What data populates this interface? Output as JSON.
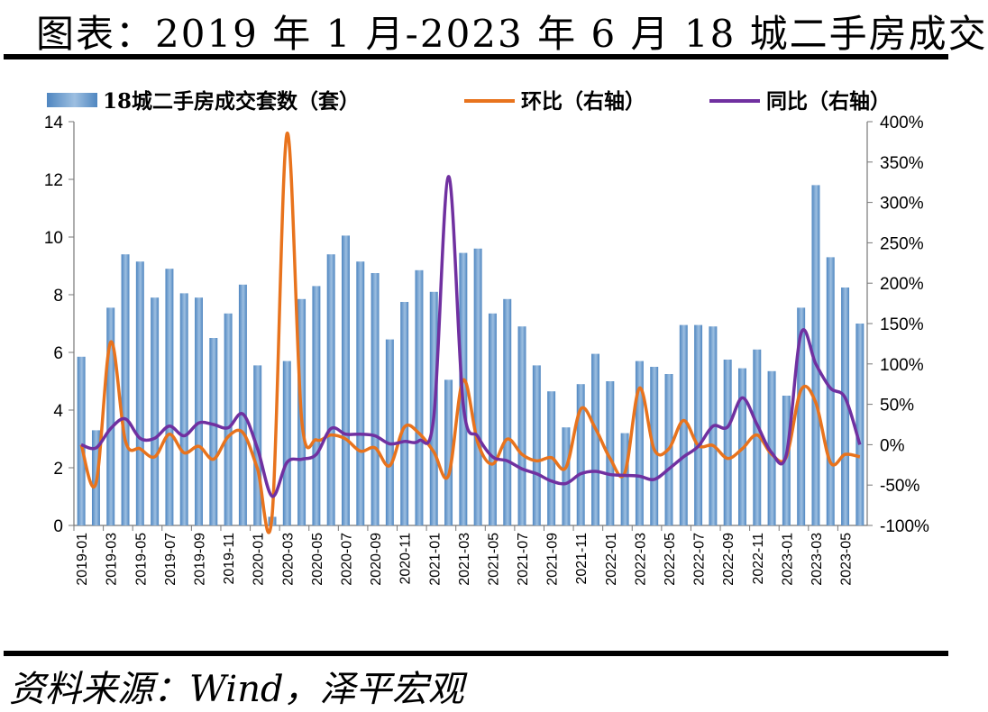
{
  "title": "图表：2019 年 1 月-2023 年 6 月 18 城二手房成交",
  "source": "资料来源：Wind，泽平宏观",
  "colors": {
    "bar": "#4f86c0",
    "bar_light": "#9dbfe1",
    "mom": "#e8731d",
    "yoy": "#7030a0"
  },
  "chart_data": {
    "type": "bar",
    "title": "",
    "xlabel": "",
    "ylabel": "",
    "ylim": [
      0,
      14
    ],
    "y2lim": [
      -1.0,
      4.0
    ],
    "y_ticks": [
      "0",
      "2",
      "4",
      "6",
      "8",
      "10",
      "12",
      "14"
    ],
    "y2_ticks": [
      "-100%",
      "-50%",
      "0%",
      "50%",
      "100%",
      "150%",
      "200%",
      "250%",
      "300%",
      "350%",
      "400%"
    ],
    "grid": false,
    "legend_position": "top",
    "x_tick_labels": [
      "2019-01",
      "2019-03",
      "2019-05",
      "2019-07",
      "2019-09",
      "2019-11",
      "2020-01",
      "2020-03",
      "2020-05",
      "2020-07",
      "2020-09",
      "2020-11",
      "2021-01",
      "2021-03",
      "2021-05",
      "2021-07",
      "2021-09",
      "2021-11",
      "2022-01",
      "2022-03",
      "2022-05",
      "2022-07",
      "2022-09",
      "2022-11",
      "2023-01",
      "2023-03",
      "2023-05"
    ],
    "categories": [
      "2019-01",
      "2019-02",
      "2019-03",
      "2019-04",
      "2019-05",
      "2019-06",
      "2019-07",
      "2019-08",
      "2019-09",
      "2019-10",
      "2019-11",
      "2019-12",
      "2020-01",
      "2020-02",
      "2020-03",
      "2020-04",
      "2020-05",
      "2020-06",
      "2020-07",
      "2020-08",
      "2020-09",
      "2020-10",
      "2020-11",
      "2020-12",
      "2021-01",
      "2021-02",
      "2021-03",
      "2021-04",
      "2021-05",
      "2021-06",
      "2021-07",
      "2021-08",
      "2021-09",
      "2021-10",
      "2021-11",
      "2021-12",
      "2022-01",
      "2022-02",
      "2022-03",
      "2022-04",
      "2022-05",
      "2022-06",
      "2022-07",
      "2022-08",
      "2022-09",
      "2022-10",
      "2022-11",
      "2022-12",
      "2023-01",
      "2023-02",
      "2023-03",
      "2023-04",
      "2023-05",
      "2023-06"
    ],
    "series": [
      {
        "name": "18城二手房成交套数（套）",
        "type": "bar",
        "axis": "left",
        "values": [
          5.85,
          3.3,
          7.55,
          9.4,
          9.15,
          7.9,
          8.9,
          8.05,
          7.9,
          6.5,
          7.35,
          8.35,
          5.55,
          0.3,
          5.7,
          7.85,
          8.3,
          9.4,
          10.05,
          9.15,
          8.75,
          6.45,
          7.75,
          8.85,
          8.1,
          5.05,
          9.45,
          9.6,
          7.35,
          7.85,
          6.9,
          5.55,
          4.65,
          3.4,
          4.9,
          5.95,
          5.0,
          3.2,
          5.7,
          5.5,
          5.25,
          6.95,
          6.95,
          6.9,
          5.75,
          5.45,
          6.1,
          5.35,
          4.5,
          7.55,
          11.8,
          9.3,
          8.25,
          7.0
        ]
      },
      {
        "name": "环比（右轴）",
        "type": "line",
        "axis": "right",
        "values": [
          0.0,
          -0.48,
          1.27,
          0.05,
          -0.05,
          -0.15,
          0.13,
          -0.1,
          -0.02,
          -0.18,
          0.1,
          0.15,
          -0.3,
          -0.86,
          3.85,
          0.32,
          0.06,
          0.12,
          0.07,
          -0.08,
          -0.04,
          -0.26,
          0.22,
          0.14,
          -0.09,
          -0.38,
          0.8,
          0.02,
          -0.24,
          0.07,
          -0.12,
          -0.2,
          -0.16,
          -0.28,
          0.44,
          0.2,
          -0.17,
          -0.35,
          0.7,
          -0.06,
          -0.05,
          0.3,
          -0.01,
          -0.01,
          -0.17,
          -0.05,
          0.12,
          -0.12,
          -0.15,
          0.68,
          0.52,
          -0.22,
          -0.12,
          -0.15
        ]
      },
      {
        "name": "同比（右轴）",
        "type": "line",
        "axis": "right",
        "values": [
          0.0,
          -0.04,
          0.2,
          0.32,
          0.08,
          0.08,
          0.23,
          0.11,
          0.27,
          0.25,
          0.21,
          0.38,
          -0.05,
          -0.64,
          -0.22,
          -0.18,
          -0.12,
          0.2,
          0.13,
          0.13,
          0.11,
          0.01,
          0.04,
          0.05,
          0.35,
          3.32,
          0.5,
          0.1,
          -0.15,
          -0.2,
          -0.3,
          -0.36,
          -0.45,
          -0.48,
          -0.36,
          -0.33,
          -0.37,
          -0.38,
          -0.39,
          -0.43,
          -0.3,
          -0.15,
          -0.02,
          0.23,
          0.22,
          0.58,
          0.25,
          -0.1,
          -0.12,
          1.38,
          1.0,
          0.7,
          0.58,
          0.0
        ]
      }
    ]
  }
}
